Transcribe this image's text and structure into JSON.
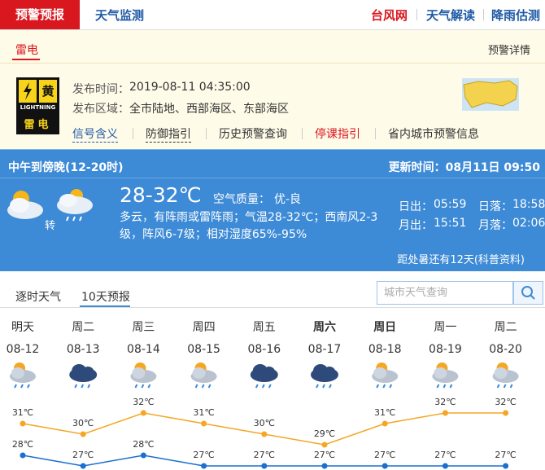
{
  "nav": {
    "active": "预警预报",
    "monitor": "天气监测",
    "right": [
      "台风网",
      "天气解读",
      "降雨估测"
    ]
  },
  "warning": {
    "tab": "雷电",
    "detail": "预警详情",
    "icon": {
      "level": "黄",
      "type": "LIGHTNING",
      "name": "雷电"
    },
    "time_label": "发布时间：",
    "time": "2019-08-11 04:35:00",
    "area_label": "发布区域：",
    "area": "全市陆地、西部海区、东部海区",
    "links": [
      "信号含义",
      "防御指引",
      "历史预警查询",
      "停课指引",
      "省内城市预警信息"
    ]
  },
  "now": {
    "period": "中午到傍晚(12-20时)",
    "update": "更新时间：08月11日 09:50",
    "turn": "转",
    "temp": "28-32℃",
    "aq_label": "空气质量：",
    "aq": "优-良",
    "desc": "多云，有阵雨或雷阵雨；气温28-32℃；西南风2-3级，阵风6-7级；相对湿度65%-95%",
    "sunrise_label": "日出：",
    "sunrise": "05:59",
    "sunset_label": "日落：",
    "sunset": "18:58",
    "moonrise_label": "月出：",
    "moonrise": "15:51",
    "moonset_label": "月落：",
    "moonset": "02:06",
    "countdown": "距处暑还有12天(科普资料)"
  },
  "tabs": [
    "逐时天气",
    "10天预报"
  ],
  "search": "城市天气查询",
  "forecast": {
    "days": [
      "明天",
      "周二",
      "周三",
      "周四",
      "周五",
      "周六",
      "周日",
      "周一",
      "周二"
    ],
    "dates": [
      "08-12",
      "08-13",
      "08-14",
      "08-15",
      "08-16",
      "08-17",
      "08-18",
      "08-19",
      "08-20"
    ],
    "high": [
      31,
      30,
      32,
      31,
      30,
      29,
      31,
      32,
      32
    ],
    "high_labels": [
      "31℃",
      "30℃",
      "32℃",
      "31℃",
      "30℃",
      "29℃",
      "31℃",
      "32℃",
      "32℃"
    ],
    "low": [
      28,
      27,
      28,
      27,
      27,
      27,
      27,
      27,
      27
    ],
    "low_labels": [
      "28℃",
      "27℃",
      "28℃",
      "27℃",
      "27℃",
      "27℃",
      "27℃",
      "27℃",
      "27℃"
    ]
  }
}
